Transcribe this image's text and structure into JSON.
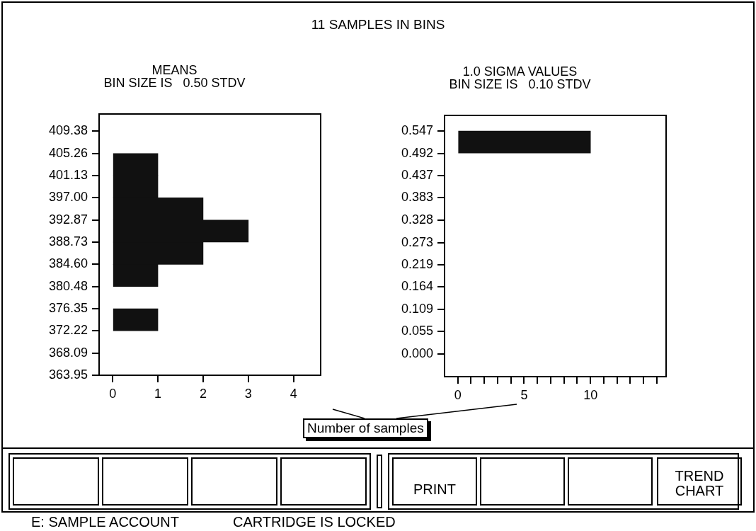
{
  "chart_data": [
    {
      "type": "other",
      "title": "11 SAMPLES IN BINS"
    },
    {
      "type": "histogram",
      "orientation": "horizontal",
      "title": "MEANS",
      "subtitle": "BIN SIZE IS   0.50 STDV",
      "xlabel": "Number of samples",
      "color": "#111111",
      "bins": [
        363.95,
        368.09,
        372.22,
        376.35,
        380.48,
        384.6,
        388.73,
        392.87,
        397,
        401.13,
        405.26,
        409.38
      ],
      "values": [
        0,
        0,
        1,
        0,
        1,
        2,
        3,
        2,
        1,
        1,
        0
      ],
      "xlim": [
        -0.3,
        4.6
      ],
      "xticks": [
        0,
        1,
        2,
        3,
        4
      ],
      "ylim": [
        363.95,
        412.6
      ],
      "yticks": [
        363.95,
        368.09,
        372.22,
        376.35,
        380.48,
        {
          "value": 384.6,
          "label": "384.60"
        },
        388.73,
        392.87,
        {
          "value": 397,
          "label": "397.00"
        },
        401.13,
        405.26,
        409.38
      ]
    },
    {
      "type": "histogram",
      "orientation": "horizontal",
      "title": "1.0 SIGMA VALUES",
      "subtitle": "BIN SIZE IS   0.10 STDV",
      "color": "#111111",
      "bins": [
        0.492,
        0.547
      ],
      "values": [
        10
      ],
      "xlim": [
        -1,
        15.7
      ],
      "xticks": [
        0,
        {
          "value": 1,
          "label": null
        },
        {
          "value": 2,
          "label": null
        },
        {
          "value": 3,
          "label": null
        },
        {
          "value": 4,
          "label": null
        },
        5,
        {
          "value": 6,
          "label": null
        },
        {
          "value": 7,
          "label": null
        },
        {
          "value": 8,
          "label": null
        },
        {
          "value": 9,
          "label": null
        },
        10,
        {
          "value": 11,
          "label": null
        },
        {
          "value": 12,
          "label": null
        },
        {
          "value": 13,
          "label": null
        },
        {
          "value": 14,
          "label": null
        },
        {
          "value": 15,
          "label": null
        }
      ],
      "ylim": [
        -0.056,
        0.585
      ],
      "yticks": [
        {
          "value": 0,
          "label": "0.000"
        },
        0.055,
        0.109,
        0.164,
        0.219,
        0.273,
        0.328,
        0.383,
        0.437,
        0.492,
        0.547
      ]
    },
    {
      "type": "other",
      "annotations": [
        "PRINT",
        "TREND CHART",
        "E: SAMPLE ACCOUNT",
        "CARTRIDGE IS LOCKED"
      ]
    }
  ]
}
